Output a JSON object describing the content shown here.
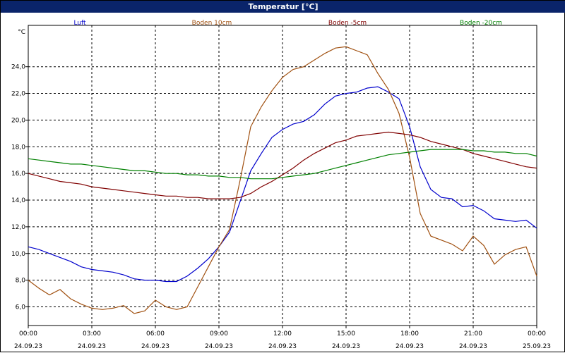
{
  "window": {
    "title": "Temperatur [°C]"
  },
  "chart_data": {
    "type": "line",
    "title": "Temperatur [°C]",
    "ylabel": "°C",
    "xlabel": "",
    "grid": true,
    "legend_position": "top",
    "xlim": [
      "24.09.23 00:00",
      "25.09.23 00:00"
    ],
    "ylim": [
      4.6,
      27.1
    ],
    "x_ticks": [
      {
        "time": "00:00",
        "date": "24.09.23"
      },
      {
        "time": "03:00",
        "date": "24.09.23"
      },
      {
        "time": "06:00",
        "date": "24.09.23"
      },
      {
        "time": "09:00",
        "date": "24.09.23"
      },
      {
        "time": "12:00",
        "date": "24.09.23"
      },
      {
        "time": "15:00",
        "date": "24.09.23"
      },
      {
        "time": "18:00",
        "date": "24.09.23"
      },
      {
        "time": "21:00",
        "date": "24.09.23"
      },
      {
        "time": "00:00",
        "date": "25.09.23"
      }
    ],
    "y_ticks": [
      "6,0",
      "8,0",
      "10,0",
      "12,0",
      "14,0",
      "16,0",
      "18,0",
      "20,0",
      "22,0",
      "24,0"
    ],
    "x_hours": [
      0,
      0.5,
      1,
      1.5,
      2,
      2.5,
      3,
      3.5,
      4,
      4.5,
      5,
      5.5,
      6,
      6.5,
      7,
      7.5,
      8,
      8.5,
      9,
      9.5,
      10,
      10.5,
      11,
      11.5,
      12,
      12.5,
      13,
      13.5,
      14,
      14.5,
      15,
      15.5,
      16,
      16.5,
      17,
      17.5,
      18,
      18.5,
      19,
      19.5,
      20,
      20.5,
      21,
      21.5,
      22,
      22.5,
      23,
      23.5,
      24
    ],
    "series": [
      {
        "name": "Luft",
        "color": "#0000cc",
        "values": [
          10.5,
          10.3,
          10.0,
          9.7,
          9.4,
          9.0,
          8.8,
          8.7,
          8.6,
          8.4,
          8.1,
          8.0,
          8.0,
          7.9,
          7.9,
          8.3,
          8.9,
          9.6,
          10.5,
          11.6,
          13.9,
          16.2,
          17.5,
          18.7,
          19.3,
          19.7,
          19.9,
          20.4,
          21.2,
          21.8,
          22.0,
          22.1,
          22.4,
          22.5,
          22.1,
          21.6,
          19.5,
          16.5,
          14.8,
          14.2,
          14.1,
          13.5,
          13.6,
          13.2,
          12.6,
          12.5,
          12.4,
          12.5,
          11.9
        ]
      },
      {
        "name": "Boden 10cm",
        "color": "#a05010",
        "values": [
          8.0,
          7.4,
          6.9,
          7.3,
          6.6,
          6.2,
          5.9,
          5.8,
          5.9,
          6.1,
          5.5,
          5.7,
          6.5,
          6.0,
          5.8,
          6.0,
          7.5,
          9.0,
          10.5,
          11.8,
          15.5,
          19.5,
          21.0,
          22.2,
          23.2,
          23.8,
          24.0,
          24.5,
          25.0,
          25.4,
          25.5,
          25.2,
          24.9,
          23.5,
          22.3,
          20.5,
          17.2,
          13.0,
          11.3,
          11.0,
          10.7,
          10.2,
          11.3,
          10.6,
          9.2,
          9.9,
          10.3,
          10.5,
          8.3
        ]
      },
      {
        "name": "Boden -5cm",
        "color": "#800000",
        "values": [
          16.0,
          15.8,
          15.6,
          15.4,
          15.3,
          15.2,
          15.0,
          14.9,
          14.8,
          14.7,
          14.6,
          14.5,
          14.4,
          14.3,
          14.3,
          14.2,
          14.2,
          14.1,
          14.1,
          14.1,
          14.2,
          14.5,
          15.0,
          15.4,
          15.9,
          16.4,
          17.0,
          17.5,
          17.9,
          18.3,
          18.5,
          18.8,
          18.9,
          19.0,
          19.1,
          19.0,
          18.9,
          18.7,
          18.4,
          18.2,
          18.0,
          17.8,
          17.5,
          17.3,
          17.1,
          16.9,
          16.7,
          16.5,
          16.4
        ]
      },
      {
        "name": "Boden -20cm",
        "color": "#008000",
        "values": [
          17.1,
          17.0,
          16.9,
          16.8,
          16.7,
          16.7,
          16.6,
          16.5,
          16.4,
          16.3,
          16.2,
          16.2,
          16.1,
          16.0,
          16.0,
          15.9,
          15.9,
          15.8,
          15.8,
          15.7,
          15.7,
          15.6,
          15.6,
          15.6,
          15.7,
          15.8,
          15.9,
          16.0,
          16.2,
          16.4,
          16.6,
          16.8,
          17.0,
          17.2,
          17.4,
          17.5,
          17.6,
          17.7,
          17.8,
          17.8,
          17.8,
          17.8,
          17.7,
          17.7,
          17.6,
          17.6,
          17.5,
          17.5,
          17.3
        ]
      }
    ]
  }
}
